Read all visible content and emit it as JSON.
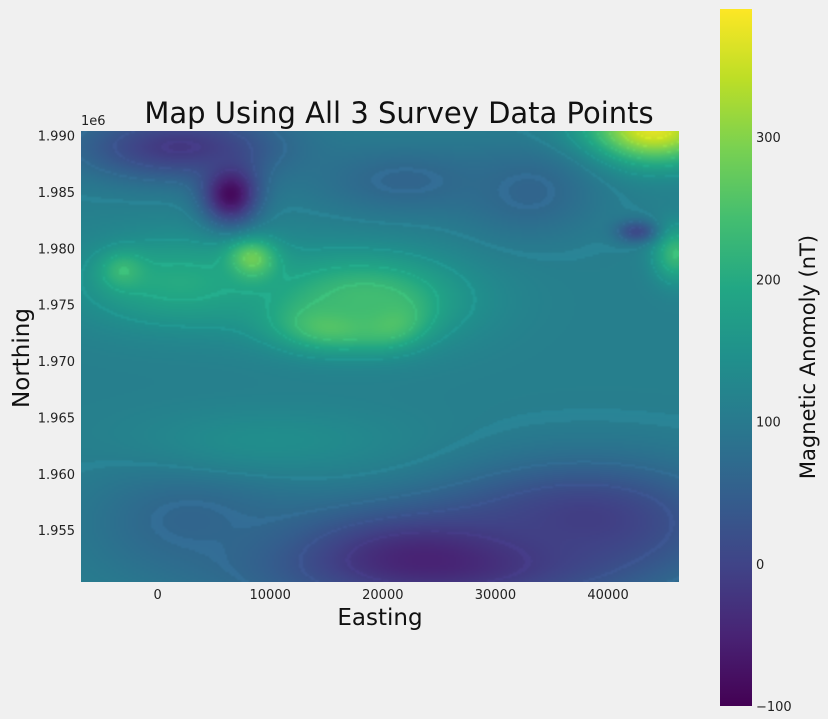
{
  "chart_data": {
    "type": "heatmap",
    "title": "Map Using All 3 Survey Data Points",
    "xlabel": "Easting",
    "ylabel": "Northing",
    "y_offset_label": "1e6",
    "xlim": [
      -6800,
      46300
    ],
    "ylim": [
      1.9504,
      1.9904
    ],
    "x_ticks": [
      0,
      10000,
      20000,
      30000,
      40000
    ],
    "x_tick_labels": [
      "0",
      "10000",
      "20000",
      "30000",
      "40000"
    ],
    "y_ticks": [
      1.955,
      1.96,
      1.965,
      1.97,
      1.975,
      1.98,
      1.985,
      1.99
    ],
    "y_tick_labels": [
      "1.955",
      "1.960",
      "1.965",
      "1.970",
      "1.975",
      "1.980",
      "1.985",
      "1.990"
    ],
    "colormap": "viridis",
    "colorbar": {
      "label": "Magnetic Anomoly (nT)",
      "vmin": -100,
      "vmax": 390,
      "ticks": [
        -100,
        0,
        100,
        200,
        300
      ],
      "tick_labels": [
        "−100",
        "0",
        "100",
        "200",
        "300"
      ]
    },
    "background_level": 110,
    "features": [
      {
        "x": 8200,
        "y": 1.9788,
        "value": 385,
        "spread_x": 2200,
        "spread_y": 0.0018
      },
      {
        "x": 15500,
        "y": 1.9735,
        "value": 300,
        "spread_x": 4500,
        "spread_y": 0.0022
      },
      {
        "x": 20500,
        "y": 1.9738,
        "value": 290,
        "spread_x": 3000,
        "spread_y": 0.0022
      },
      {
        "x": 18000,
        "y": 1.9755,
        "value": 240,
        "spread_x": 9000,
        "spread_y": 0.004
      },
      {
        "x": 2000,
        "y": 1.977,
        "value": 200,
        "spread_x": 9000,
        "spread_y": 0.004
      },
      {
        "x": -3000,
        "y": 1.978,
        "value": 230,
        "spread_x": 2000,
        "spread_y": 0.0016
      },
      {
        "x": 44000,
        "y": 1.9905,
        "value": 370,
        "spread_x": 6000,
        "spread_y": 0.003
      },
      {
        "x": 46000,
        "y": 1.9795,
        "value": 230,
        "spread_x": 2000,
        "spread_y": 0.0025
      },
      {
        "x": 6500,
        "y": 1.985,
        "value": -100,
        "spread_x": 2500,
        "spread_y": 0.0028
      },
      {
        "x": 2000,
        "y": 1.989,
        "value": -20,
        "spread_x": 9000,
        "spread_y": 0.003
      },
      {
        "x": 42500,
        "y": 1.9815,
        "value": 10,
        "spread_x": 1800,
        "spread_y": 0.001
      },
      {
        "x": 25000,
        "y": 1.9525,
        "value": -60,
        "spread_x": 16000,
        "spread_y": 0.0045
      },
      {
        "x": 38000,
        "y": 1.956,
        "value": -10,
        "spread_x": 12000,
        "spread_y": 0.005
      },
      {
        "x": 22000,
        "y": 1.986,
        "value": 60,
        "spread_x": 8000,
        "spread_y": 0.003
      },
      {
        "x": 33000,
        "y": 1.985,
        "value": 60,
        "spread_x": 6000,
        "spread_y": 0.004
      },
      {
        "x": 3000,
        "y": 1.956,
        "value": 60,
        "spread_x": 9000,
        "spread_y": 0.005
      },
      {
        "x": 10000,
        "y": 1.963,
        "value": 140,
        "spread_x": 12000,
        "spread_y": 0.003
      }
    ]
  }
}
